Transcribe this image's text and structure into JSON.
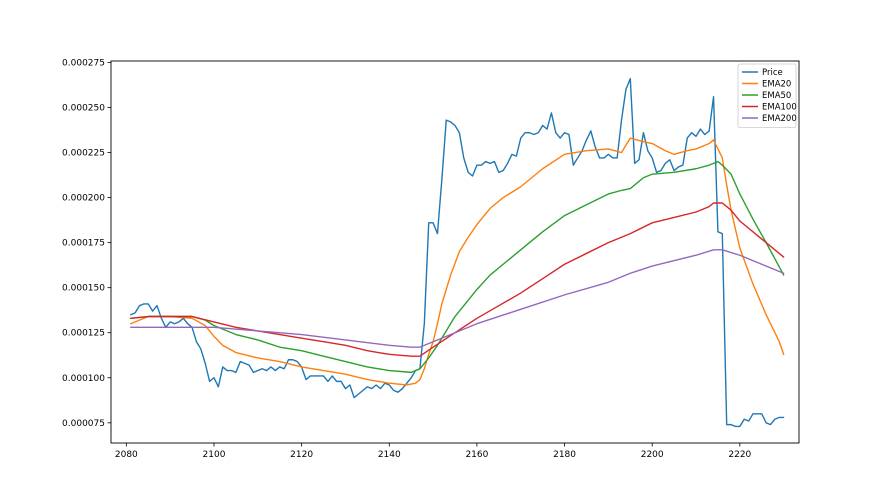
{
  "chart_data": {
    "type": "line",
    "title": "",
    "xlabel": "",
    "ylabel": "",
    "xlim": [
      2076.5,
      2233.5
    ],
    "ylim": [
      6.38e-05,
      0.0002758
    ],
    "x_ticks": [
      2080,
      2100,
      2120,
      2140,
      2160,
      2180,
      2200,
      2220
    ],
    "y_ticks": [
      7.5e-05,
      0.0001,
      0.000125,
      0.00015,
      0.000175,
      0.0002,
      0.000225,
      0.00025,
      0.000275
    ],
    "y_tick_labels": [
      "0.000075",
      "0.000100",
      "0.000125",
      "0.000150",
      "0.000175",
      "0.000200",
      "0.000225",
      "0.000250",
      "0.000275"
    ],
    "grid": false,
    "legend_position": "top-right",
    "series": [
      {
        "name": "Price",
        "color": "#1f77b4",
        "x": [
          2081,
          2082,
          2083,
          2084,
          2085,
          2086,
          2087,
          2088,
          2089,
          2090,
          2091,
          2092,
          2093,
          2094,
          2095,
          2096,
          2097,
          2098,
          2099,
          2100,
          2101,
          2102,
          2103,
          2104,
          2105,
          2106,
          2107,
          2108,
          2109,
          2110,
          2111,
          2112,
          2113,
          2114,
          2115,
          2116,
          2117,
          2118,
          2119,
          2120,
          2121,
          2122,
          2123,
          2124,
          2125,
          2126,
          2127,
          2128,
          2129,
          2130,
          2131,
          2132,
          2133,
          2134,
          2135,
          2136,
          2137,
          2138,
          2139,
          2140,
          2141,
          2142,
          2143,
          2144,
          2145,
          2146,
          2147,
          2148,
          2149,
          2150,
          2151,
          2152,
          2153,
          2154,
          2155,
          2156,
          2157,
          2158,
          2159,
          2160,
          2161,
          2162,
          2163,
          2164,
          2165,
          2166,
          2167,
          2168,
          2169,
          2170,
          2171,
          2172,
          2173,
          2174,
          2175,
          2176,
          2177,
          2178,
          2179,
          2180,
          2181,
          2182,
          2183,
          2184,
          2185,
          2186,
          2187,
          2188,
          2189,
          2190,
          2191,
          2192,
          2193,
          2194,
          2195,
          2196,
          2197,
          2198,
          2199,
          2200,
          2201,
          2202,
          2203,
          2204,
          2205,
          2206,
          2207,
          2208,
          2209,
          2210,
          2211,
          2212,
          2213,
          2214,
          2215,
          2216,
          2217,
          2218,
          2219,
          2220,
          2221,
          2222,
          2223,
          2224,
          2225,
          2226,
          2227,
          2228,
          2229,
          2230
        ],
        "values": [
          0.000135,
          0.000136,
          0.00014,
          0.000141,
          0.000141,
          0.000137,
          0.00014,
          0.000133,
          0.000128,
          0.000131,
          0.00013,
          0.000131,
          0.000133,
          0.00013,
          0.000128,
          0.00012,
          0.000116,
          0.000108,
          9.8e-05,
          0.0001,
          9.5e-05,
          0.000106,
          0.000104,
          0.000104,
          0.000103,
          0.000109,
          0.000108,
          0.000107,
          0.000103,
          0.000104,
          0.000105,
          0.000104,
          0.000106,
          0.000104,
          0.000106,
          0.000105,
          0.00011,
          0.00011,
          0.000109,
          0.000106,
          9.9e-05,
          0.000101,
          0.000101,
          0.000101,
          0.000101,
          9.8e-05,
          0.000101,
          9.8e-05,
          9.8e-05,
          9.4e-05,
          9.6e-05,
          8.9e-05,
          9.1e-05,
          9.3e-05,
          9.5e-05,
          9.4e-05,
          9.6e-05,
          9.4e-05,
          9.7e-05,
          9.6e-05,
          9.3e-05,
          9.2e-05,
          9.4e-05,
          9.7e-05,
          0.0001,
          0.000104,
          0.000105,
          0.00013,
          0.000186,
          0.000186,
          0.00018,
          0.00021,
          0.000243,
          0.000242,
          0.00024,
          0.000236,
          0.000222,
          0.000214,
          0.000212,
          0.000218,
          0.000218,
          0.00022,
          0.000219,
          0.00022,
          0.000214,
          0.000215,
          0.000219,
          0.000224,
          0.000223,
          0.000233,
          0.000236,
          0.000236,
          0.000235,
          0.000236,
          0.00024,
          0.000238,
          0.000247,
          0.000236,
          0.000233,
          0.000236,
          0.000235,
          0.000218,
          0.000222,
          0.000226,
          0.000232,
          0.000237,
          0.000228,
          0.000222,
          0.000222,
          0.000224,
          0.000222,
          0.000222,
          0.000243,
          0.00026,
          0.000266,
          0.000219,
          0.000221,
          0.000236,
          0.000226,
          0.000222,
          0.000214,
          0.000215,
          0.000219,
          0.000221,
          0.000215,
          0.000217,
          0.000218,
          0.000233,
          0.000236,
          0.000234,
          0.000238,
          0.000235,
          0.000237,
          0.000256,
          0.000181,
          0.00018,
          7.4e-05,
          7.4e-05,
          7.3e-05,
          7.3e-05,
          7.7e-05,
          7.6e-05,
          8e-05,
          8e-05,
          8e-05,
          7.5e-05,
          7.4e-05,
          7.7e-05,
          7.8e-05,
          7.8e-05
        ]
      },
      {
        "name": "EMA20",
        "color": "#ff7f0e",
        "x": [
          2081,
          2085,
          2090,
          2095,
          2098,
          2100,
          2102,
          2105,
          2110,
          2115,
          2120,
          2125,
          2130,
          2135,
          2140,
          2144,
          2146,
          2147,
          2148,
          2149,
          2150,
          2151,
          2152,
          2154,
          2156,
          2158,
          2160,
          2163,
          2166,
          2170,
          2175,
          2180,
          2185,
          2190,
          2193,
          2195,
          2198,
          2200,
          2203,
          2205,
          2208,
          2210,
          2213,
          2214,
          2215,
          2216,
          2217,
          2218,
          2220,
          2223,
          2226,
          2229,
          2230
        ],
        "values": [
          0.00013,
          0.000134,
          0.000134,
          0.000133,
          0.000129,
          0.000123,
          0.000118,
          0.000114,
          0.000111,
          0.000109,
          0.000106,
          0.000104,
          0.000102,
          9.9e-05,
          9.7e-05,
          9.6e-05,
          9.7e-05,
          9.9e-05,
          0.000105,
          0.000113,
          0.00012,
          0.00013,
          0.000141,
          0.000157,
          0.00017,
          0.000178,
          0.000185,
          0.000194,
          0.0002,
          0.000206,
          0.000216,
          0.000224,
          0.000226,
          0.000227,
          0.000225,
          0.000233,
          0.000231,
          0.00023,
          0.000226,
          0.000224,
          0.000226,
          0.000227,
          0.00023,
          0.000232,
          0.000227,
          0.000222,
          0.000207,
          0.000193,
          0.000172,
          0.000152,
          0.000135,
          0.00012,
          0.000113
        ]
      },
      {
        "name": "EMA50",
        "color": "#2ca02c",
        "x": [
          2081,
          2085,
          2090,
          2095,
          2098,
          2100,
          2105,
          2110,
          2115,
          2120,
          2125,
          2130,
          2135,
          2140,
          2145,
          2147,
          2149,
          2151,
          2153,
          2155,
          2158,
          2160,
          2163,
          2166,
          2170,
          2175,
          2180,
          2185,
          2190,
          2193,
          2195,
          2198,
          2200,
          2205,
          2210,
          2213,
          2214,
          2215,
          2216,
          2218,
          2220,
          2223,
          2226,
          2230
        ],
        "values": [
          0.000133,
          0.000134,
          0.000134,
          0.000134,
          0.000132,
          0.000129,
          0.000124,
          0.000121,
          0.000117,
          0.000115,
          0.000112,
          0.000109,
          0.000106,
          0.000104,
          0.000103,
          0.000105,
          0.000111,
          0.000118,
          0.000126,
          0.000134,
          0.000143,
          0.000149,
          0.000157,
          0.000163,
          0.000171,
          0.000181,
          0.00019,
          0.000196,
          0.000202,
          0.000204,
          0.000205,
          0.000211,
          0.000213,
          0.000214,
          0.000216,
          0.000218,
          0.000219,
          0.00022,
          0.000218,
          0.000213,
          0.000202,
          0.000188,
          0.000175,
          0.000157
        ]
      },
      {
        "name": "EMA100",
        "color": "#d62728",
        "x": [
          2081,
          2085,
          2090,
          2095,
          2100,
          2105,
          2110,
          2115,
          2120,
          2125,
          2130,
          2135,
          2140,
          2145,
          2147,
          2150,
          2155,
          2160,
          2165,
          2170,
          2175,
          2180,
          2185,
          2190,
          2195,
          2200,
          2205,
          2210,
          2213,
          2214,
          2215,
          2216,
          2218,
          2220,
          2225,
          2230
        ],
        "values": [
          0.000133,
          0.000134,
          0.000134,
          0.000134,
          0.000131,
          0.000128,
          0.000126,
          0.000124,
          0.000122,
          0.00012,
          0.000118,
          0.000115,
          0.000113,
          0.000112,
          0.000112,
          0.000117,
          0.000125,
          0.000133,
          0.00014,
          0.000147,
          0.000155,
          0.000163,
          0.000169,
          0.000175,
          0.00018,
          0.000186,
          0.000189,
          0.000192,
          0.000195,
          0.000197,
          0.000197,
          0.000197,
          0.000193,
          0.000187,
          0.000177,
          0.000167
        ]
      },
      {
        "name": "EMA200",
        "color": "#9467bd",
        "x": [
          2081,
          2090,
          2100,
          2110,
          2120,
          2130,
          2140,
          2145,
          2147,
          2150,
          2155,
          2160,
          2170,
          2180,
          2190,
          2195,
          2200,
          2210,
          2214,
          2216,
          2220,
          2225,
          2230
        ],
        "values": [
          0.000128,
          0.000128,
          0.000128,
          0.000126,
          0.000124,
          0.000121,
          0.000118,
          0.000117,
          0.000117,
          0.00012,
          0.000125,
          0.00013,
          0.000138,
          0.000146,
          0.000153,
          0.000158,
          0.000162,
          0.000168,
          0.000171,
          0.000171,
          0.000168,
          0.000163,
          0.000158
        ]
      }
    ]
  }
}
